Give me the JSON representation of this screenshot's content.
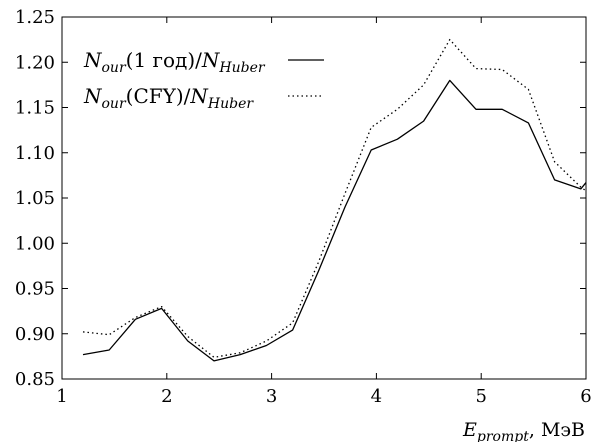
{
  "chart_data": {
    "type": "line",
    "title": "",
    "xlabel_main": "E",
    "xlabel_sub": "prompt",
    "xlabel_unit": ", МэВ",
    "ylabel": "",
    "xlim": [
      1,
      6
    ],
    "ylim": [
      0.85,
      1.25
    ],
    "xticks": [
      1,
      2,
      3,
      4,
      5,
      6
    ],
    "xtick_labels": [
      "1",
      "2",
      "3",
      "4",
      "5",
      "6"
    ],
    "yticks": [
      0.85,
      0.9,
      0.95,
      1.0,
      1.05,
      1.1,
      1.15,
      1.2,
      1.25
    ],
    "ytick_labels": [
      "0.85",
      "0.90",
      "0.95",
      "1.00",
      "1.05",
      "1.10",
      "1.15",
      "1.20",
      "1.25"
    ],
    "grid": false,
    "legend_position": "top-left",
    "series": [
      {
        "legend_main": "N",
        "legend_sub1": "our",
        "legend_mid": "(1 год)/",
        "legend_main2": "N",
        "legend_sub2": "Huber",
        "style": "solid",
        "color": "#000000",
        "x": [
          1.2,
          1.45,
          1.7,
          1.95,
          2.2,
          2.45,
          2.7,
          2.95,
          3.2,
          3.45,
          3.7,
          3.95,
          4.2,
          4.45,
          4.7,
          4.95,
          5.2,
          5.45,
          5.7,
          5.95,
          6.0
        ],
        "y": [
          0.877,
          0.882,
          0.916,
          0.928,
          0.892,
          0.87,
          0.877,
          0.887,
          0.904,
          0.97,
          1.04,
          1.103,
          1.115,
          1.135,
          1.18,
          1.148,
          1.148,
          1.133,
          1.07,
          1.06,
          1.067
        ]
      },
      {
        "legend_main": "N",
        "legend_sub1": "our",
        "legend_mid": "(CFY)/",
        "legend_main2": "N",
        "legend_sub2": "Huber",
        "style": "dotted",
        "color": "#000000",
        "x": [
          1.2,
          1.45,
          1.7,
          1.95,
          2.2,
          2.45,
          2.7,
          2.95,
          3.2,
          3.45,
          3.7,
          3.95,
          4.2,
          4.45,
          4.7,
          4.95,
          5.2,
          5.45,
          5.7,
          5.95,
          6.0
        ],
        "y": [
          0.902,
          0.899,
          0.918,
          0.93,
          0.897,
          0.874,
          0.879,
          0.892,
          0.912,
          0.98,
          1.055,
          1.128,
          1.148,
          1.175,
          1.225,
          1.193,
          1.192,
          1.17,
          1.09,
          1.062,
          1.058
        ]
      }
    ]
  }
}
